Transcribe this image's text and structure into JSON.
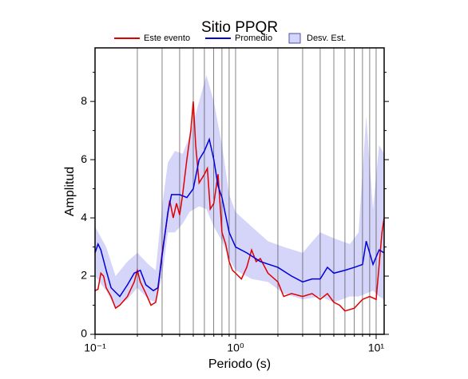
{
  "chart_data": {
    "type": "line",
    "title": "Sitio PPQR",
    "x_label": "Periodo (s)",
    "y_label": "Amplitud",
    "log_x": true,
    "grid": true,
    "xlim": [
      0.1,
      11.4
    ],
    "ylim": [
      0,
      9.84
    ],
    "xticks": [
      {
        "value": 0.1,
        "label": "10⁻¹"
      },
      {
        "value": 1,
        "label": "10⁰"
      },
      {
        "value": 10,
        "label": "10¹"
      }
    ],
    "xminorticks": [
      0.2,
      0.3,
      0.4,
      0.5,
      0.6,
      0.7,
      0.8,
      0.9,
      2,
      3,
      4,
      5,
      6,
      7,
      8,
      9
    ],
    "yticks": [
      0,
      2,
      4,
      6,
      8
    ],
    "yminorticks": [
      1,
      3,
      5,
      7,
      9
    ],
    "band": {
      "name": "Desv. Est.",
      "color": "#d5d5fa",
      "edge": "#5050aa",
      "x": [
        0.1,
        0.12,
        0.14,
        0.17,
        0.2,
        0.24,
        0.27,
        0.3,
        0.33,
        0.37,
        0.42,
        0.47,
        0.55,
        0.62,
        0.7,
        0.8,
        0.9,
        1.0,
        1.3,
        1.7,
        2.2,
        3.0,
        4.0,
        5.0,
        6.5,
        7.5,
        8.5,
        9.5,
        10.5,
        11.4
      ],
      "lower": [
        2.0,
        1.5,
        0.9,
        1.2,
        1.6,
        1.2,
        1.1,
        2.0,
        3.5,
        3.5,
        3.8,
        4.2,
        4.4,
        4.3,
        3.7,
        3.2,
        2.6,
        2.2,
        1.9,
        1.8,
        1.4,
        1.2,
        1.3,
        1.1,
        1.3,
        1.3,
        1.4,
        1.5,
        1.3,
        1.2
      ],
      "upper": [
        3.7,
        3.0,
        2.0,
        2.5,
        2.8,
        2.4,
        2.2,
        4.4,
        5.9,
        6.3,
        6.2,
        6.8,
        8.0,
        8.9,
        8.0,
        6.5,
        4.8,
        4.2,
        3.7,
        3.2,
        3.0,
        2.8,
        3.5,
        3.3,
        3.1,
        3.5,
        7.5,
        4.3,
        6.5,
        6.2
      ]
    },
    "series": [
      {
        "name": "Este evento",
        "color": "#e00000",
        "x": [
          0.1,
          0.105,
          0.11,
          0.115,
          0.12,
          0.13,
          0.14,
          0.15,
          0.17,
          0.19,
          0.2,
          0.21,
          0.23,
          0.25,
          0.27,
          0.28,
          0.3,
          0.32,
          0.34,
          0.36,
          0.38,
          0.4,
          0.42,
          0.45,
          0.48,
          0.5,
          0.52,
          0.55,
          0.6,
          0.63,
          0.66,
          0.7,
          0.75,
          0.8,
          0.85,
          0.9,
          0.95,
          1.0,
          1.1,
          1.2,
          1.3,
          1.4,
          1.5,
          1.7,
          2.0,
          2.2,
          2.5,
          3.0,
          3.5,
          4.0,
          4.5,
          5.0,
          5.5,
          6.0,
          7.0,
          8.0,
          9.0,
          10.0,
          11.0,
          11.4
        ],
        "values": [
          1.5,
          1.55,
          2.1,
          2.0,
          1.6,
          1.3,
          0.9,
          1.0,
          1.3,
          1.8,
          2.2,
          1.8,
          1.4,
          1.0,
          1.1,
          1.5,
          2.8,
          3.7,
          4.6,
          4.0,
          4.5,
          4.1,
          4.8,
          6.0,
          7.0,
          8.0,
          6.5,
          5.2,
          5.5,
          5.7,
          4.3,
          4.5,
          5.5,
          3.5,
          3.1,
          2.5,
          2.2,
          2.1,
          1.9,
          2.3,
          2.9,
          2.5,
          2.6,
          2.1,
          1.8,
          1.3,
          1.4,
          1.3,
          1.4,
          1.2,
          1.4,
          1.1,
          1.0,
          0.8,
          0.9,
          1.2,
          1.3,
          1.2,
          3.5,
          4.0
        ]
      },
      {
        "name": "Promedio",
        "color": "#0000dd",
        "x": [
          0.1,
          0.105,
          0.11,
          0.12,
          0.13,
          0.15,
          0.17,
          0.19,
          0.21,
          0.23,
          0.26,
          0.28,
          0.3,
          0.33,
          0.35,
          0.4,
          0.45,
          0.5,
          0.55,
          0.6,
          0.65,
          0.7,
          0.75,
          0.8,
          0.9,
          1.0,
          1.2,
          1.5,
          2.0,
          2.5,
          3.0,
          3.5,
          4.0,
          4.5,
          5.0,
          6.0,
          7.0,
          8.0,
          8.5,
          9.5,
          10.5,
          11.4
        ],
        "values": [
          2.8,
          3.1,
          2.9,
          2.2,
          1.6,
          1.3,
          1.7,
          2.1,
          2.2,
          1.7,
          1.5,
          1.6,
          2.7,
          4.2,
          4.8,
          4.8,
          4.7,
          5.0,
          6.0,
          6.3,
          6.7,
          6.0,
          5.1,
          4.7,
          3.5,
          3.0,
          2.8,
          2.5,
          2.3,
          2.0,
          1.8,
          1.9,
          1.9,
          2.3,
          2.1,
          2.2,
          2.3,
          2.4,
          3.2,
          2.4,
          2.9,
          2.8
        ]
      }
    ]
  }
}
